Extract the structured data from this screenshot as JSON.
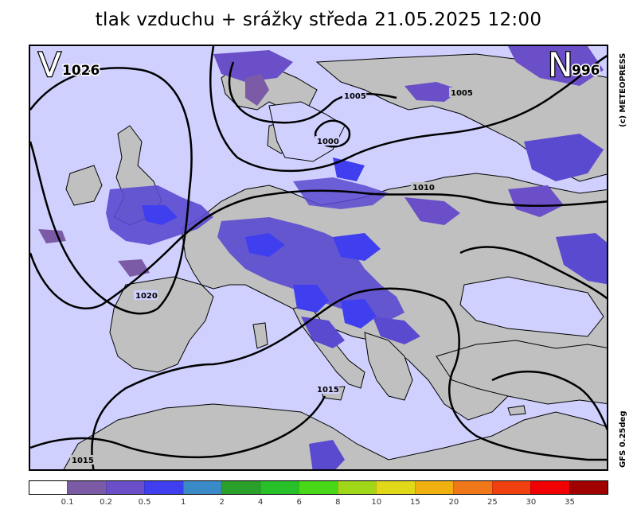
{
  "title": "tlak vzduchu + srážky  středa 21.05.2025 12:00",
  "credit": "(c) METEOPRESS",
  "model": "GFS 0.25deg",
  "pressure_centers": [
    {
      "symbol": "V",
      "value": "1026"
    },
    {
      "symbol": "N",
      "value": "996"
    }
  ],
  "isobar_labels": [
    "1005",
    "1005",
    "1000",
    "1010",
    "1020",
    "1015",
    "1015"
  ],
  "legend": {
    "colors": [
      "#ffffff",
      "#7b5aa6",
      "#6a4fc8",
      "#3f3ff0",
      "#3a8ac8",
      "#2aa02a",
      "#28c028",
      "#48d818",
      "#a0d818",
      "#e0d818",
      "#f0b010",
      "#f07818",
      "#f04010",
      "#f00000",
      "#a00000"
    ],
    "labels": [
      "0.1",
      "0.2",
      "0.5",
      "1",
      "2",
      "4",
      "6",
      "8",
      "10",
      "15",
      "20",
      "25",
      "30",
      "35"
    ]
  },
  "colors": {
    "sea": "#d0d0ff",
    "land": "#c0c0c0",
    "precip_light": "#7b5aa6",
    "precip_mid": "#5a4ad0",
    "precip_heavy": "#3f3ff0"
  }
}
